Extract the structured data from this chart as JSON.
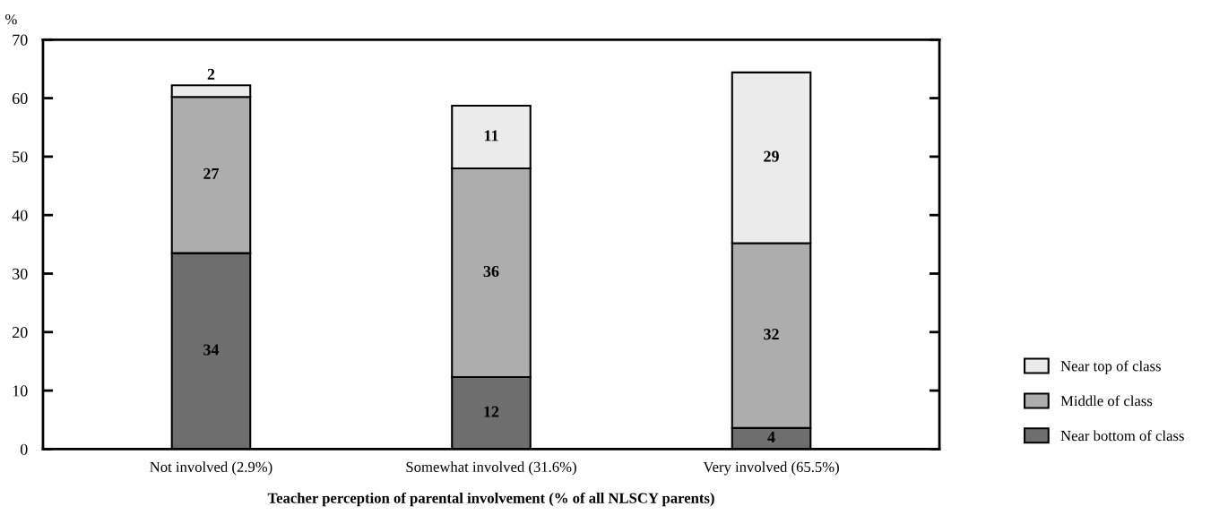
{
  "chart_data": {
    "type": "bar",
    "stacked": true,
    "ylabel": "%",
    "xlabel": "Teacher perception of parental involvement (% of all NLSCY parents)",
    "categories": [
      "Not involved (2.9%)",
      "Somewhat involved (31.6%)",
      "Very involved (65.5%)"
    ],
    "series": [
      {
        "name": "Near bottom of class",
        "color": "#6e6e6e",
        "values": [
          33.5,
          12.3,
          3.6
        ],
        "value_labels": [
          "34",
          "12",
          "4"
        ]
      },
      {
        "name": "Middle of class",
        "color": "#adadad",
        "values": [
          26.7,
          35.7,
          31.6
        ],
        "value_labels": [
          "27",
          "36",
          "32"
        ]
      },
      {
        "name": "Near top of class",
        "color": "#ebebeb",
        "values": [
          2.0,
          10.7,
          29.2
        ],
        "value_labels": [
          "2",
          "11",
          "29"
        ]
      }
    ],
    "ylim": [
      0,
      70
    ],
    "yticks": [
      0,
      10,
      20,
      30,
      40,
      50,
      60,
      70
    ],
    "grid": false,
    "legend": "bottom right"
  }
}
